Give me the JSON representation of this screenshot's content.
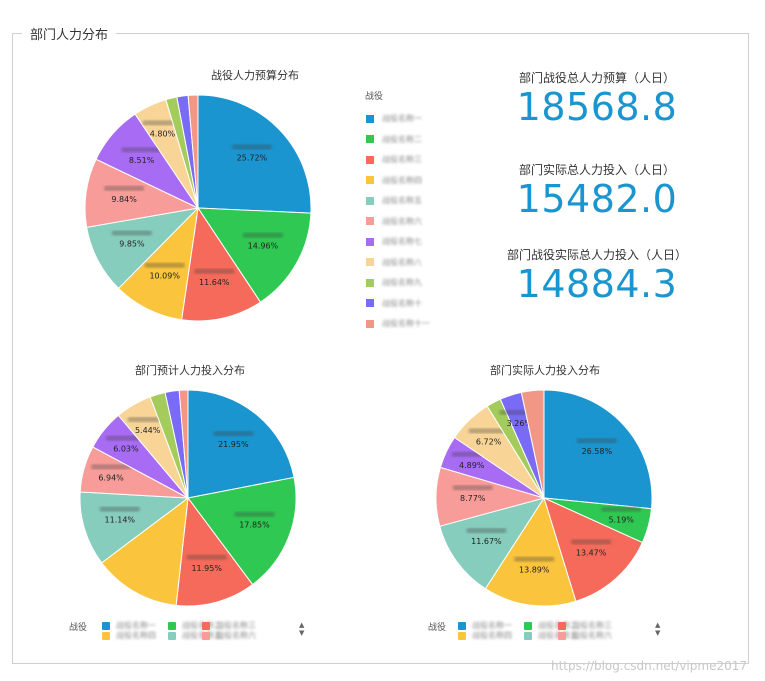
{
  "panel": {
    "title": "部门人力分布"
  },
  "stats": [
    {
      "label": "部门战役总人力预算（人日）",
      "value": "18568.8"
    },
    {
      "label": "部门实际总人力投入（人日）",
      "value": "15482.0"
    },
    {
      "label": "部门战役实际总人力投入（人日）",
      "value": "14884.3"
    }
  ],
  "legend": {
    "title": "战役",
    "items": [
      "战役名称一",
      "战役名称二",
      "战役名称三",
      "战役名称四",
      "战役名称五",
      "战役名称六",
      "战役名称七",
      "战役名称八",
      "战役名称九",
      "战役名称十",
      "战役名称十一"
    ]
  },
  "bottom_legend": {
    "title": "战役"
  },
  "colors": [
    "#1a95d0",
    "#2ec853",
    "#f56a5a",
    "#fac43c",
    "#87cdbd",
    "#f89c9a",
    "#a86bf3",
    "#f8d596",
    "#a4cc5c",
    "#7a6bf7",
    "#f29685"
  ],
  "watermark": "https://blog.csdn.net/vipme2017",
  "chart_data": [
    {
      "type": "pie",
      "title": "战役人力预算分布",
      "values": [
        25.72,
        14.96,
        11.64,
        10.09,
        9.85,
        9.84,
        8.51,
        4.8,
        1.59,
        1.6,
        1.4
      ],
      "labels": [
        "25.72%",
        "14.96%",
        "11.64%",
        "10.09%",
        "9.85%",
        "9.84%",
        "8.51%",
        "4.80%",
        "",
        "",
        ""
      ]
    },
    {
      "type": "pie",
      "title": "部门预计人力投入分布",
      "values": [
        21.95,
        17.85,
        11.95,
        13.0,
        11.14,
        6.94,
        6.03,
        5.44,
        2.3,
        2.1,
        1.3
      ],
      "labels": [
        "21.95%",
        "17.85%",
        "11.95%",
        "",
        "11.14%",
        "6.94%",
        "6.03%",
        "5.44%",
        "",
        "",
        ""
      ]
    },
    {
      "type": "pie",
      "title": "部门实际人力投入分布",
      "values": [
        26.58,
        5.19,
        13.47,
        13.89,
        11.67,
        8.77,
        4.89,
        6.72,
        2.2,
        3.26,
        3.36
      ],
      "labels": [
        "26.58%",
        "5.19%",
        "13.47%",
        "13.89%",
        "11.67%",
        "8.77%",
        "4.89%",
        "6.72%",
        "",
        "3.26%",
        ""
      ]
    }
  ]
}
